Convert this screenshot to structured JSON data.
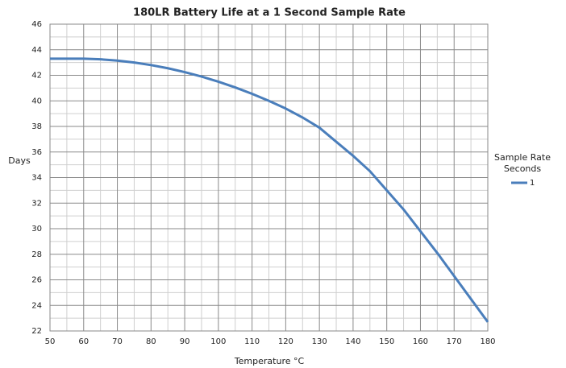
{
  "chart_data": {
    "type": "line",
    "title": "180LR Battery Life at a 1 Second Sample Rate",
    "x_label": "Temperature °C",
    "y_label": "Days",
    "legend_title": [
      "Sample Rate",
      "Seconds"
    ],
    "x": [
      50,
      60,
      65,
      70,
      75,
      80,
      85,
      90,
      95,
      100,
      105,
      110,
      115,
      120,
      125,
      130,
      135,
      140,
      145,
      150,
      155,
      160,
      165,
      170,
      175,
      180
    ],
    "series": [
      {
        "name": "1",
        "color": "#4a7ebb",
        "values": [
          43.3,
          43.3,
          43.25,
          43.15,
          43.0,
          42.8,
          42.55,
          42.25,
          41.9,
          41.5,
          41.05,
          40.55,
          40.0,
          39.4,
          38.7,
          37.9,
          36.8,
          35.7,
          34.5,
          33.0,
          31.5,
          29.8,
          28.1,
          26.3,
          24.5,
          22.7
        ]
      }
    ],
    "xlim": [
      50,
      180
    ],
    "xticks": [
      50,
      60,
      70,
      80,
      90,
      100,
      110,
      120,
      130,
      140,
      150,
      160,
      170,
      180
    ],
    "ylim": [
      22,
      46
    ],
    "yticks": [
      22,
      24,
      26,
      28,
      30,
      32,
      34,
      36,
      38,
      40,
      42,
      44,
      46
    ],
    "grid": true,
    "minor_grid": true,
    "legend": "right"
  }
}
